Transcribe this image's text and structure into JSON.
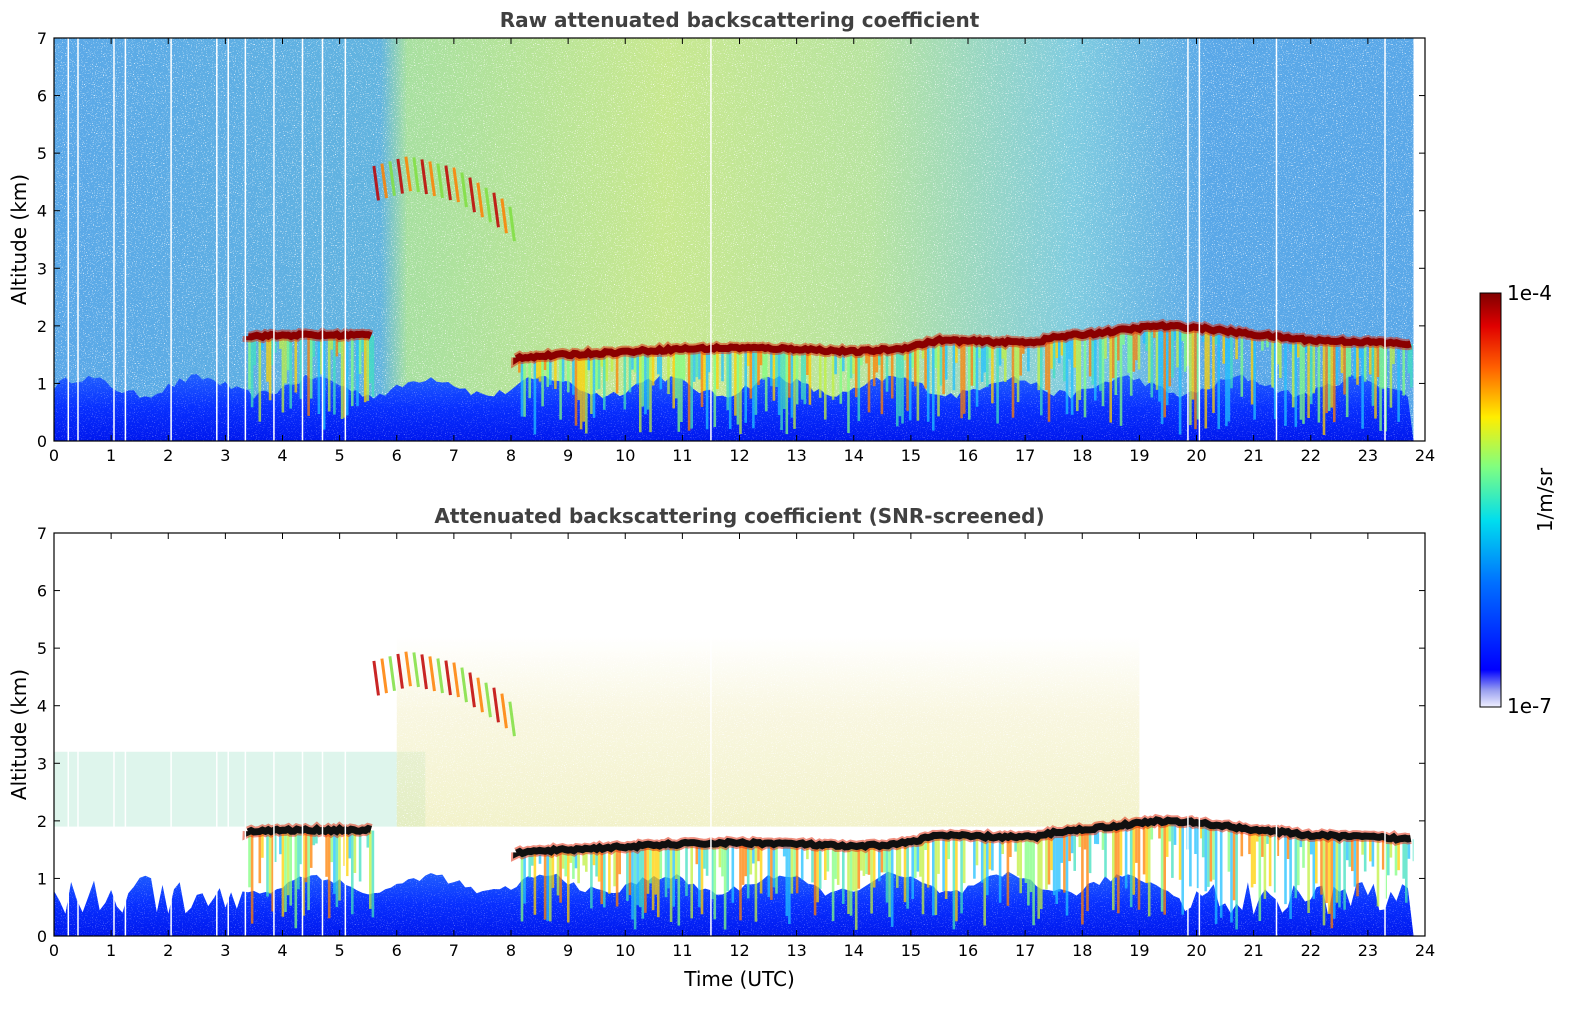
{
  "chart_data": [
    {
      "type": "heatmap",
      "title": "Raw attenuated backscattering coefficient",
      "xlabel": "",
      "ylabel": "Altitude (km)",
      "xlim": [
        0,
        24
      ],
      "ylim": [
        0,
        7
      ],
      "xticks": [
        0,
        1,
        2,
        3,
        4,
        5,
        6,
        7,
        8,
        9,
        10,
        11,
        12,
        13,
        14,
        15,
        16,
        17,
        18,
        19,
        20,
        21,
        22,
        23,
        24
      ],
      "yticks": [
        0,
        1,
        2,
        3,
        4,
        5,
        6,
        7
      ],
      "screened": false
    },
    {
      "type": "heatmap",
      "title": "Attenuated backscattering coefficient (SNR-screened)",
      "xlabel": "Time (UTC)",
      "ylabel": "Altitude (km)",
      "xlim": [
        0,
        24
      ],
      "ylim": [
        0,
        7
      ],
      "xticks": [
        0,
        1,
        2,
        3,
        4,
        5,
        6,
        7,
        8,
        9,
        10,
        11,
        12,
        13,
        14,
        15,
        16,
        17,
        18,
        19,
        20,
        21,
        22,
        23,
        24
      ],
      "yticks": [
        0,
        1,
        2,
        3,
        4,
        5,
        6,
        7
      ],
      "screened": true
    }
  ],
  "colorbar": {
    "label": "1/m/sr",
    "max_label": "1e-4",
    "min_label": "1e-7",
    "scale": "log",
    "colormap": "jet"
  },
  "features": {
    "boundary_layer_top_km": [
      [
        3.4,
        1.82
      ],
      [
        4.2,
        1.84
      ],
      [
        5.0,
        1.84
      ],
      [
        5.5,
        1.84
      ],
      [
        8.1,
        1.45
      ],
      [
        9.0,
        1.5
      ],
      [
        10.0,
        1.55
      ],
      [
        11.0,
        1.6
      ],
      [
        12.0,
        1.62
      ],
      [
        13.0,
        1.6
      ],
      [
        14.0,
        1.55
      ],
      [
        14.8,
        1.6
      ],
      [
        15.5,
        1.75
      ],
      [
        16.5,
        1.72
      ],
      [
        17.2,
        1.72
      ],
      [
        17.5,
        1.8
      ],
      [
        18.5,
        1.9
      ],
      [
        19.3,
        2.0
      ],
      [
        20.0,
        1.97
      ],
      [
        21.0,
        1.85
      ],
      [
        22.0,
        1.75
      ],
      [
        23.0,
        1.72
      ],
      [
        23.8,
        1.68
      ]
    ],
    "elevated_layer_km": [
      [
        5.5,
        4.4
      ],
      [
        6.2,
        4.6
      ],
      [
        7.0,
        4.4
      ],
      [
        7.8,
        3.9
      ],
      [
        8.0,
        3.7
      ]
    ]
  }
}
